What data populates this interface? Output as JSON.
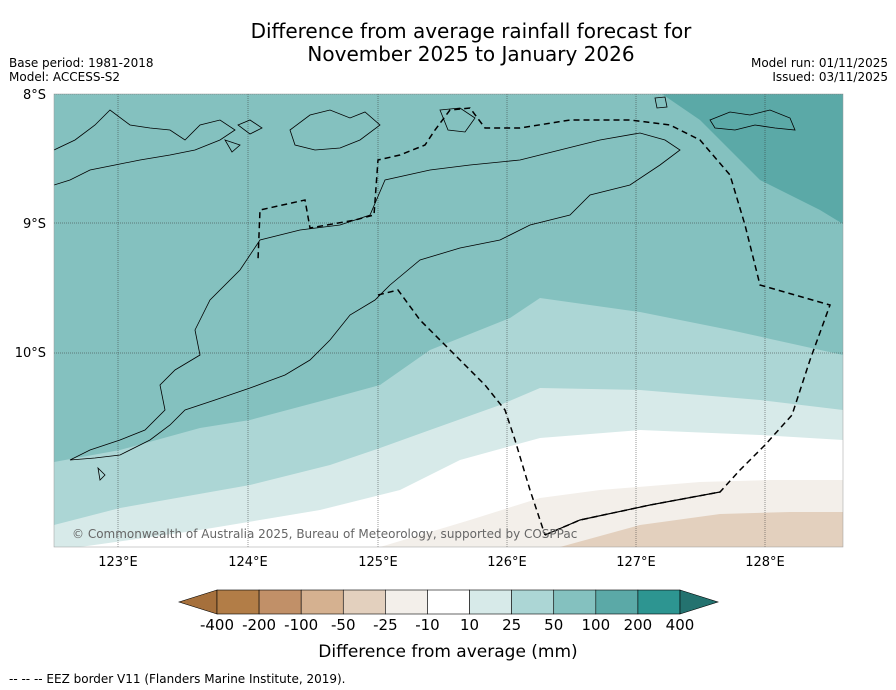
{
  "title": {
    "line1": "Difference from average rainfall forecast for",
    "line2": "November 2025 to January 2026"
  },
  "meta": {
    "base_period": "Base period: 1981-2018",
    "model": "Model: ACCESS-S2",
    "model_run": "Model run: 01/11/2025",
    "issued": "Issued: 03/11/2025"
  },
  "map": {
    "lat_labels": [
      "8°S",
      "9°S",
      "10°S"
    ],
    "lon_labels": [
      "123°E",
      "124°E",
      "125°E",
      "126°E",
      "127°E",
      "128°E"
    ],
    "lon_range": [
      122.5,
      128.6
    ],
    "lat_range": [
      -8.0,
      -11.5
    ],
    "copyright": "© Commonwealth of Australia 2025, Bureau of Meteorology, supported by COSPPac",
    "zones_top_to_bottom": [
      "100 to 200 mm",
      "50 to 100 mm",
      "25 to 50 mm",
      "10 to 25 mm",
      "-10 to 10 mm",
      "-25 to -10 mm",
      "-50 to -25 mm"
    ]
  },
  "colorbar": {
    "title": "Difference from average (mm)",
    "ticks": [
      "-400",
      "-200",
      "-100",
      "-50",
      "-25",
      "-10",
      "10",
      "25",
      "50",
      "100",
      "200",
      "400"
    ],
    "colors": [
      "#a6703c",
      "#b27d47",
      "#c19068",
      "#d5b190",
      "#e3d0be",
      "#f3efea",
      "#ffffff",
      "#d7eae9",
      "#acd6d5",
      "#84c1bf",
      "#5ba9a7",
      "#2d9591",
      "#24726f"
    ]
  },
  "footnote": "--  --  -- EEZ border V11 (Flanders Marine Institute, 2019)."
}
